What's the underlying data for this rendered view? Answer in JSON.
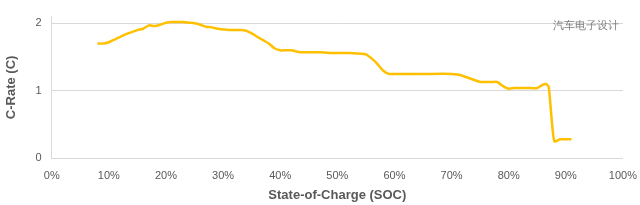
{
  "chart_data": {
    "type": "line",
    "xlabel": "State-of-Charge (SOC)",
    "ylabel": "C-Rate (C)",
    "annotation": "汽车电子设计",
    "color": "#ffc000",
    "grid": true,
    "x": [
      8,
      9,
      10,
      11,
      12,
      13,
      14,
      15,
      16,
      17,
      18,
      19,
      20,
      21,
      22,
      23,
      24,
      25,
      26,
      27,
      28,
      29,
      30,
      31,
      32,
      33,
      34,
      35,
      36,
      37,
      38,
      39,
      40,
      41,
      42,
      43,
      44,
      45,
      47,
      49,
      50,
      52,
      54,
      55,
      56,
      57,
      58,
      59,
      60,
      65,
      70,
      71,
      72,
      73,
      74,
      75,
      77,
      78,
      79,
      80,
      81,
      82,
      84,
      85,
      86,
      86.5,
      87,
      87.5,
      88,
      89,
      90,
      91
    ],
    "values": [
      1.7,
      1.7,
      1.72,
      1.76,
      1.8,
      1.84,
      1.87,
      1.9,
      1.92,
      1.97,
      1.96,
      1.98,
      2.01,
      2.02,
      2.02,
      2.02,
      2.01,
      2.0,
      1.98,
      1.95,
      1.94,
      1.92,
      1.91,
      1.9,
      1.9,
      1.9,
      1.89,
      1.85,
      1.8,
      1.75,
      1.7,
      1.63,
      1.6,
      1.6,
      1.6,
      1.58,
      1.57,
      1.57,
      1.57,
      1.56,
      1.56,
      1.56,
      1.55,
      1.54,
      1.48,
      1.4,
      1.3,
      1.25,
      1.25,
      1.25,
      1.25,
      1.24,
      1.22,
      1.19,
      1.16,
      1.13,
      1.13,
      1.13,
      1.07,
      1.03,
      1.04,
      1.04,
      1.04,
      1.04,
      1.09,
      1.1,
      1.06,
      0.6,
      0.25,
      0.28,
      0.28,
      0.28
    ],
    "xlim": [
      0,
      100
    ],
    "xticks": [
      {
        "value": 0,
        "label": "0%"
      },
      {
        "value": 10,
        "label": "10%"
      },
      {
        "value": 20,
        "label": "20%"
      },
      {
        "value": 30,
        "label": "30%"
      },
      {
        "value": 40,
        "label": "40%"
      },
      {
        "value": 50,
        "label": "50%"
      },
      {
        "value": 60,
        "label": "60%"
      },
      {
        "value": 70,
        "label": "70%"
      },
      {
        "value": 80,
        "label": "80%"
      },
      {
        "value": 90,
        "label": "90%"
      },
      {
        "value": 100,
        "label": "100%"
      }
    ],
    "ylim": [
      0,
      2.1
    ],
    "yticks": [
      0,
      1,
      2
    ]
  }
}
